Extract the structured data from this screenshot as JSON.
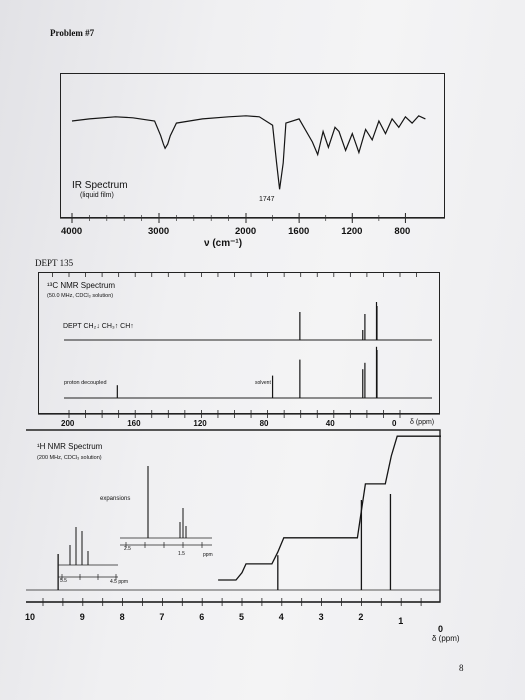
{
  "problem_title": "Problem #7",
  "page_number": "8",
  "ir": {
    "title": "IR Spectrum",
    "subtitle": "(liquid film)",
    "peak_label": "1747",
    "ticks": [
      "4000",
      "3000",
      "2000",
      "1600",
      "1200",
      "800"
    ],
    "xlabel": "ν (cm⁻¹)"
  },
  "dept_heading": "DEPT 135",
  "c13": {
    "title": "¹³C NMR Spectrum",
    "subtitle": "(50.0 MHz, CDCl₃ solution)",
    "dept_label": "DEPT CH₂↓ CH₃↑ CH↑",
    "proton_label": "proton decoupled",
    "solvent_label": "solvent",
    "ticks": [
      "200",
      "160",
      "120",
      "80",
      "40",
      "0"
    ],
    "unit": "δ (ppm)"
  },
  "h1": {
    "title": "¹H NMR Spectrum",
    "subtitle": "(200 MHz, CDCl₃ solution)",
    "expansions_label": "expansions",
    "exp_left_ticks": [
      "5.5",
      "4.5 ppm"
    ],
    "exp_right_ticks": [
      "2.5",
      "1.5",
      "ppm"
    ],
    "ticks": [
      "10",
      "9",
      "8",
      "7",
      "6",
      "5",
      "4",
      "3",
      "2",
      "1",
      "0"
    ],
    "unit": "δ (ppm)"
  },
  "chart_data": [
    {
      "type": "line",
      "title": "IR Spectrum",
      "xlabel": "ν (cm⁻¹)",
      "xlim": [
        4000,
        600
      ],
      "x_ticks": [
        4000,
        3000,
        2000,
        1600,
        1200,
        800
      ],
      "annotations": [
        {
          "x": 1747,
          "label": "1747"
        }
      ],
      "series": [
        {
          "x": [
            4000,
            3800,
            3500,
            3300,
            3050,
            2980,
            2950,
            2930,
            2900,
            2870,
            2800,
            2500,
            2200,
            2000,
            1900,
            1800,
            1770,
            1747,
            1720,
            1700,
            1600,
            1500,
            1460,
            1420,
            1380,
            1330,
            1300,
            1250,
            1200,
            1150,
            1100,
            1050,
            1000,
            950,
            900,
            850,
            800,
            750,
            700,
            650
          ],
          "y": [
            80,
            82,
            84,
            83,
            80,
            66,
            58,
            54,
            58,
            66,
            78,
            82,
            84,
            85,
            84,
            76,
            40,
            15,
            40,
            78,
            82,
            60,
            48,
            70,
            55,
            74,
            70,
            52,
            68,
            50,
            72,
            62,
            80,
            68,
            82,
            74,
            84,
            78,
            85,
            82
          ]
        }
      ]
    },
    {
      "type": "bar",
      "title": "¹³C NMR Spectrum",
      "xlabel": "δ (ppm)",
      "xlim": [
        220,
        -5
      ],
      "x_ticks": [
        200,
        160,
        120,
        80,
        40,
        0
      ],
      "series": [
        {
          "name": "DEPT",
          "x": [
            60.5,
            22.5,
            21.2,
            14.2,
            13.9
          ],
          "values": [
            28,
            10,
            26,
            38,
            34
          ]
        },
        {
          "name": "proton decoupled",
          "x": [
            170.8,
            77.0,
            60.5,
            22.5,
            21.2,
            14.2,
            13.9
          ],
          "values": [
            8,
            14,
            24,
            18,
            22,
            32,
            30
          ]
        }
      ]
    },
    {
      "type": "line",
      "title": "¹H NMR Spectrum",
      "xlabel": "δ (ppm)",
      "xlim": [
        10.5,
        -0.5
      ],
      "x_ticks": [
        10,
        9,
        8,
        7,
        6,
        5,
        4,
        3,
        2,
        1,
        0
      ],
      "series": [
        {
          "name": "integration",
          "x": [
            5.6,
            5.15,
            5.0,
            4.9,
            4.25,
            4.1,
            3.95,
            3.0,
            2.1,
            2.0,
            1.9,
            1.4,
            1.25,
            1.1,
            0.0
          ],
          "y": [
            0,
            0,
            12,
            26,
            26,
            45,
            68,
            68,
            68,
            112,
            155,
            155,
            200,
            232,
            232
          ]
        },
        {
          "name": "peaks",
          "x": [
            9.62,
            4.1,
            2.0,
            1.27
          ],
          "values": [
            60,
            58,
            150,
            160
          ]
        }
      ]
    }
  ]
}
